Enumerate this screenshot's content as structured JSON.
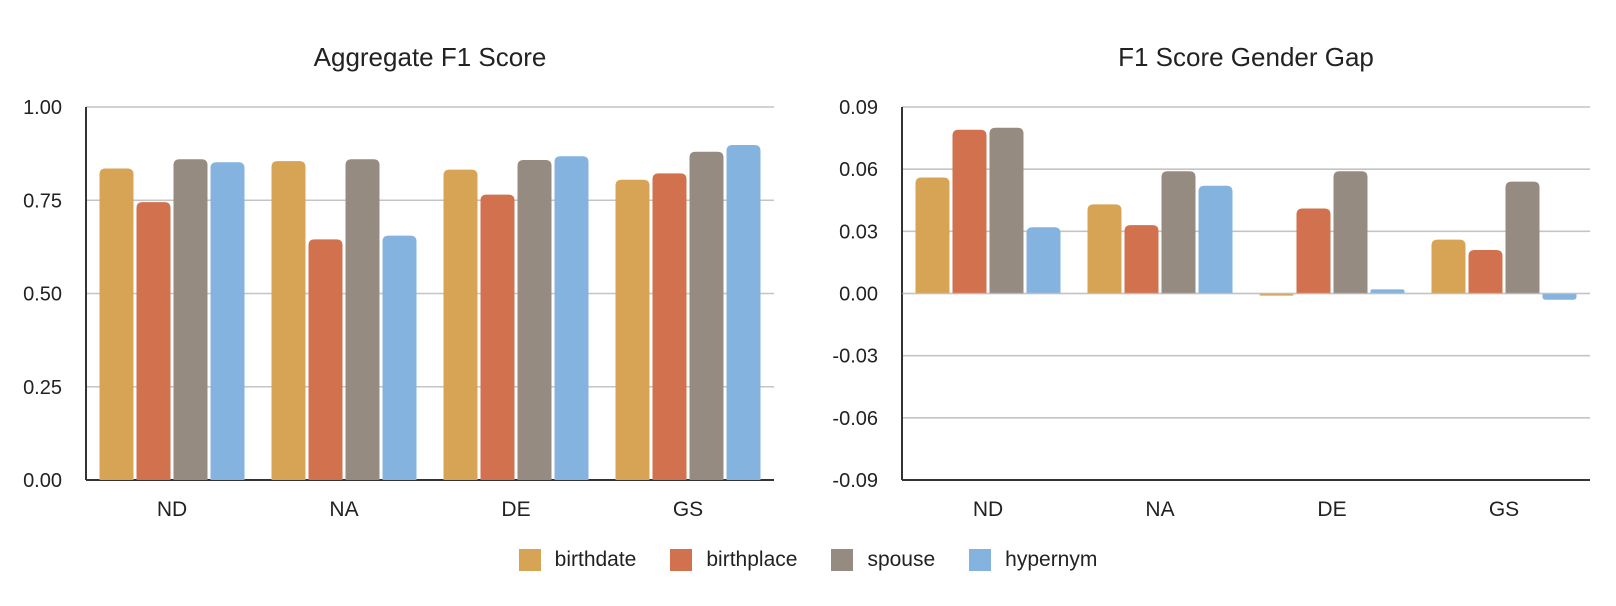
{
  "legend": {
    "items": [
      "birthdate",
      "birthplace",
      "spouse",
      "hypernym"
    ]
  },
  "colors": {
    "birthdate": "#D6A454",
    "birthplace": "#D2714D",
    "spouse": "#958B80",
    "hypernym": "#84B3DF"
  },
  "chart_data": [
    {
      "type": "bar",
      "title": "Aggregate F1 Score",
      "categories": [
        "ND",
        "NA",
        "DE",
        "GS"
      ],
      "series": [
        {
          "name": "birthdate",
          "values": [
            0.835,
            0.855,
            0.832,
            0.805
          ]
        },
        {
          "name": "birthplace",
          "values": [
            0.745,
            0.645,
            0.765,
            0.822
          ]
        },
        {
          "name": "spouse",
          "values": [
            0.86,
            0.86,
            0.858,
            0.88
          ]
        },
        {
          "name": "hypernym",
          "values": [
            0.852,
            0.655,
            0.868,
            0.898
          ]
        }
      ],
      "ylim": [
        0,
        1
      ],
      "yticks": [
        "1.00",
        "0.75",
        "0.50",
        "0.25",
        "0.00"
      ],
      "grid": true,
      "legend": "bottom"
    },
    {
      "type": "bar",
      "title": "F1 Score Gender Gap",
      "categories": [
        "ND",
        "NA",
        "DE",
        "GS"
      ],
      "series": [
        {
          "name": "birthdate",
          "values": [
            0.056,
            0.043,
            -0.001,
            0.026
          ]
        },
        {
          "name": "birthplace",
          "values": [
            0.079,
            0.033,
            0.041,
            0.021
          ]
        },
        {
          "name": "spouse",
          "values": [
            0.08,
            0.059,
            0.059,
            0.054
          ]
        },
        {
          "name": "hypernym",
          "values": [
            0.032,
            0.052,
            0.002,
            -0.003
          ]
        }
      ],
      "ylim": [
        -0.09,
        0.09
      ],
      "yticks": [
        "0.09",
        "0.06",
        "0.03",
        "0.00",
        "-0.03",
        "-0.06",
        "-0.09"
      ],
      "grid": true,
      "legend": "bottom"
    }
  ]
}
